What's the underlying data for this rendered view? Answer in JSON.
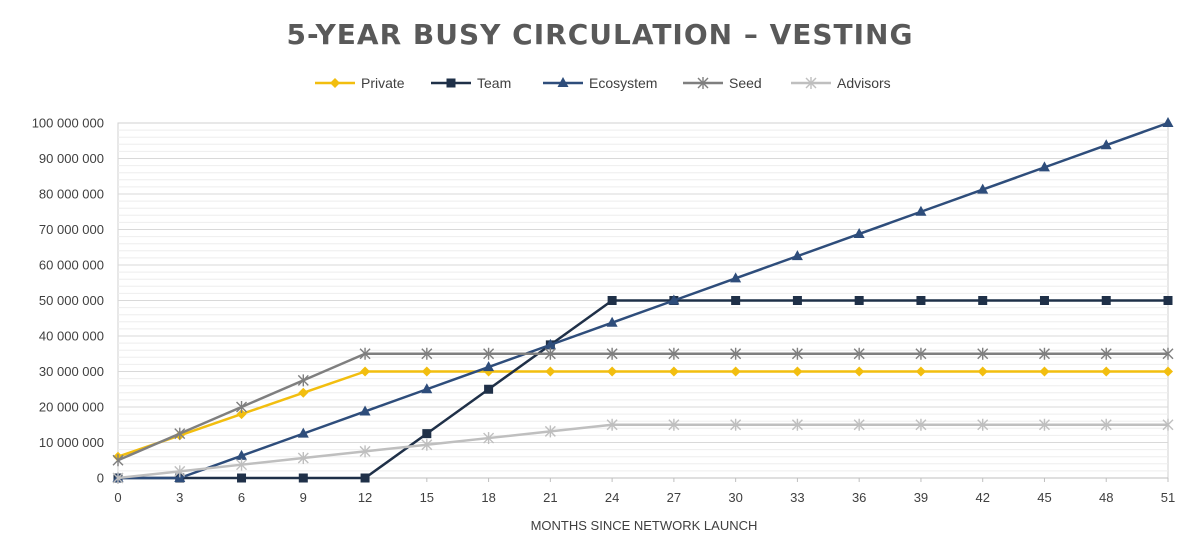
{
  "chart_data": {
    "type": "line",
    "title": "5-YEAR BUSY CIRCULATION – VESTING",
    "xlabel": "MONTHS SINCE NETWORK LAUNCH",
    "ylabel": "",
    "x": [
      0,
      3,
      6,
      9,
      12,
      15,
      18,
      21,
      24,
      27,
      30,
      33,
      36,
      39,
      42,
      45,
      48,
      51
    ],
    "ylim": [
      0,
      100000000
    ],
    "yticks": [
      0,
      10000000,
      20000000,
      30000000,
      40000000,
      50000000,
      60000000,
      70000000,
      80000000,
      90000000,
      100000000
    ],
    "ytick_labels": [
      "0",
      "10 000 000",
      "20 000 000",
      "30 000 000",
      "40 000 000",
      "50 000 000",
      "60 000 000",
      "70 000 000",
      "80 000 000",
      "90 000 000",
      "100 000 000"
    ],
    "grid": true,
    "legend_position": "top-center",
    "series": [
      {
        "name": "Private",
        "color": "#F2BE0F",
        "marker": "diamond",
        "values": [
          6000000,
          12000000,
          18000000,
          24000000,
          30000000,
          30000000,
          30000000,
          30000000,
          30000000,
          30000000,
          30000000,
          30000000,
          30000000,
          30000000,
          30000000,
          30000000,
          30000000,
          30000000
        ]
      },
      {
        "name": "Team",
        "color": "#1F3048",
        "marker": "square",
        "values": [
          0,
          0,
          0,
          0,
          0,
          12500000,
          25000000,
          37500000,
          50000000,
          50000000,
          50000000,
          50000000,
          50000000,
          50000000,
          50000000,
          50000000,
          50000000,
          50000000
        ]
      },
      {
        "name": "Ecosystem",
        "color": "#2E4D7B",
        "marker": "triangle",
        "values": [
          0,
          0,
          6250000,
          12500000,
          18750000,
          25000000,
          31250000,
          37500000,
          43750000,
          50000000,
          56250000,
          62500000,
          68750000,
          75000000,
          81250000,
          87500000,
          93750000,
          100000000
        ]
      },
      {
        "name": "Seed",
        "color": "#7F7F7F",
        "marker": "star",
        "values": [
          5000000,
          12500000,
          20000000,
          27500000,
          35000000,
          35000000,
          35000000,
          35000000,
          35000000,
          35000000,
          35000000,
          35000000,
          35000000,
          35000000,
          35000000,
          35000000,
          35000000,
          35000000
        ]
      },
      {
        "name": "Advisors",
        "color": "#BFBFBF",
        "marker": "star",
        "values": [
          0,
          1875000,
          3750000,
          5625000,
          7500000,
          9375000,
          11250000,
          13125000,
          15000000,
          15000000,
          15000000,
          15000000,
          15000000,
          15000000,
          15000000,
          15000000,
          15000000,
          15000000
        ]
      }
    ]
  }
}
